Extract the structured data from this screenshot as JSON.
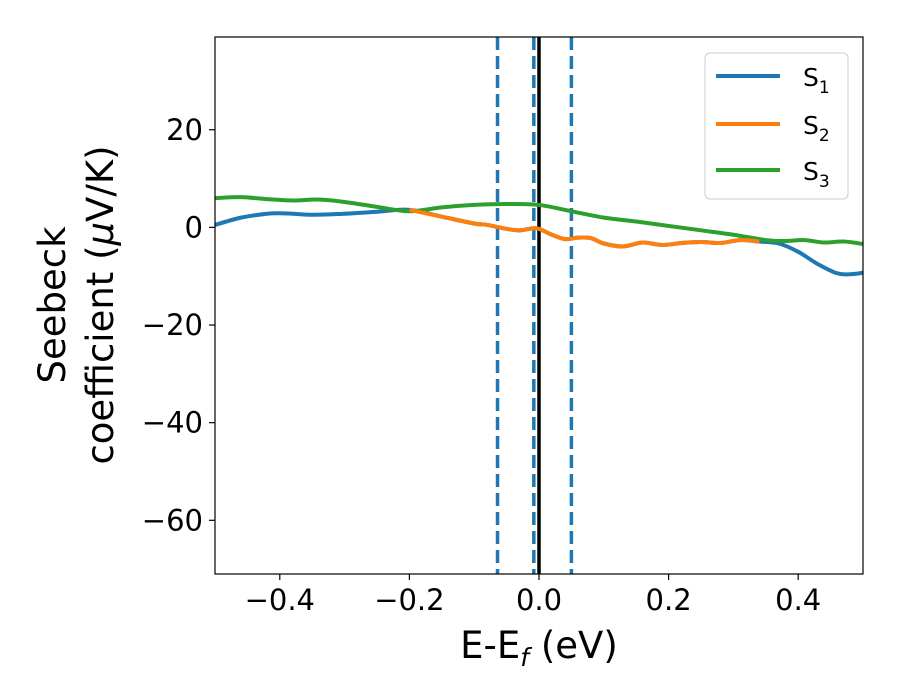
{
  "chart_data": {
    "type": "line",
    "xlabel": {
      "base": "E-E",
      "sub": "f",
      "rest": " (eV)"
    },
    "ylabel": {
      "line1": "Seebeck",
      "line2_pre": "coefficient  (",
      "line2_mu": "μ",
      "line2_post": "V/K)"
    },
    "xlim": [
      -0.5,
      0.5
    ],
    "ylim": [
      -71,
      39
    ],
    "xticks": [
      -0.4,
      -0.2,
      0.0,
      0.2,
      0.4
    ],
    "xtick_labels": [
      "−0.4",
      "−0.2",
      "0.0",
      "0.2",
      "0.4"
    ],
    "yticks": [
      20,
      0,
      -20,
      -40,
      -60
    ],
    "ytick_labels": [
      "20",
      "0",
      "−20",
      "−40",
      "−60"
    ],
    "legend_position": "top-right",
    "vlines": [
      {
        "x": -0.064,
        "style": "dashed",
        "color": "#1f77b4"
      },
      {
        "x": -0.008,
        "style": "dashed",
        "color": "#1f77b4"
      },
      {
        "x": 0.05,
        "style": "dashed",
        "color": "#1f77b4"
      },
      {
        "x": 0.0,
        "style": "solid",
        "color": "#000000"
      }
    ],
    "series": [
      {
        "name": {
          "base": "S",
          "sub": "1"
        },
        "color": "#1f77b4",
        "x": [
          -0.5,
          -0.46,
          -0.42,
          -0.4,
          -0.38,
          -0.35,
          -0.3,
          -0.25,
          -0.2,
          -0.15,
          -0.1,
          -0.08,
          -0.05,
          -0.03,
          -0.01,
          0.0,
          0.02,
          0.04,
          0.06,
          0.08,
          0.1,
          0.13,
          0.16,
          0.19,
          0.22,
          0.25,
          0.28,
          0.31,
          0.34,
          0.37,
          0.4,
          0.43,
          0.46,
          0.48,
          0.5
        ],
        "y": [
          0.5,
          2.0,
          2.8,
          2.9,
          2.8,
          2.6,
          2.8,
          3.2,
          3.6,
          2.2,
          0.8,
          0.5,
          -0.3,
          -0.6,
          -0.2,
          -0.3,
          -1.5,
          -2.4,
          -2.1,
          -2.2,
          -3.3,
          -3.9,
          -3.1,
          -3.6,
          -3.2,
          -3.0,
          -3.2,
          -2.6,
          -2.9,
          -3.3,
          -5.0,
          -7.5,
          -9.4,
          -9.6,
          -9.3
        ]
      },
      {
        "name": {
          "base": "S",
          "sub": "2"
        },
        "color": "#ff7f0e",
        "x": [
          -0.2,
          -0.15,
          -0.1,
          -0.08,
          -0.05,
          -0.03,
          -0.01,
          0.0,
          0.02,
          0.04,
          0.06,
          0.08,
          0.1,
          0.13,
          0.16,
          0.19,
          0.22,
          0.25,
          0.28,
          0.31,
          0.34
        ],
        "y": [
          3.6,
          2.2,
          0.8,
          0.5,
          -0.3,
          -0.6,
          -0.2,
          -0.3,
          -1.5,
          -2.4,
          -2.1,
          -2.2,
          -3.3,
          -3.9,
          -3.1,
          -3.6,
          -3.2,
          -3.0,
          -3.2,
          -2.6,
          -2.9
        ]
      },
      {
        "name": {
          "base": "S",
          "sub": "3"
        },
        "color": "#2ca02c",
        "x": [
          -0.5,
          -0.46,
          -0.42,
          -0.38,
          -0.34,
          -0.3,
          -0.25,
          -0.2,
          -0.15,
          -0.1,
          -0.05,
          0.0,
          0.05,
          0.1,
          0.15,
          0.2,
          0.25,
          0.3,
          0.35,
          0.38,
          0.41,
          0.44,
          0.47,
          0.5
        ],
        "y": [
          6.0,
          6.2,
          5.8,
          5.5,
          5.7,
          5.2,
          4.2,
          3.3,
          4.1,
          4.6,
          4.8,
          4.6,
          3.3,
          2.0,
          1.2,
          0.3,
          -0.6,
          -1.5,
          -2.6,
          -2.8,
          -2.6,
          -3.1,
          -2.9,
          -3.4
        ]
      }
    ]
  }
}
